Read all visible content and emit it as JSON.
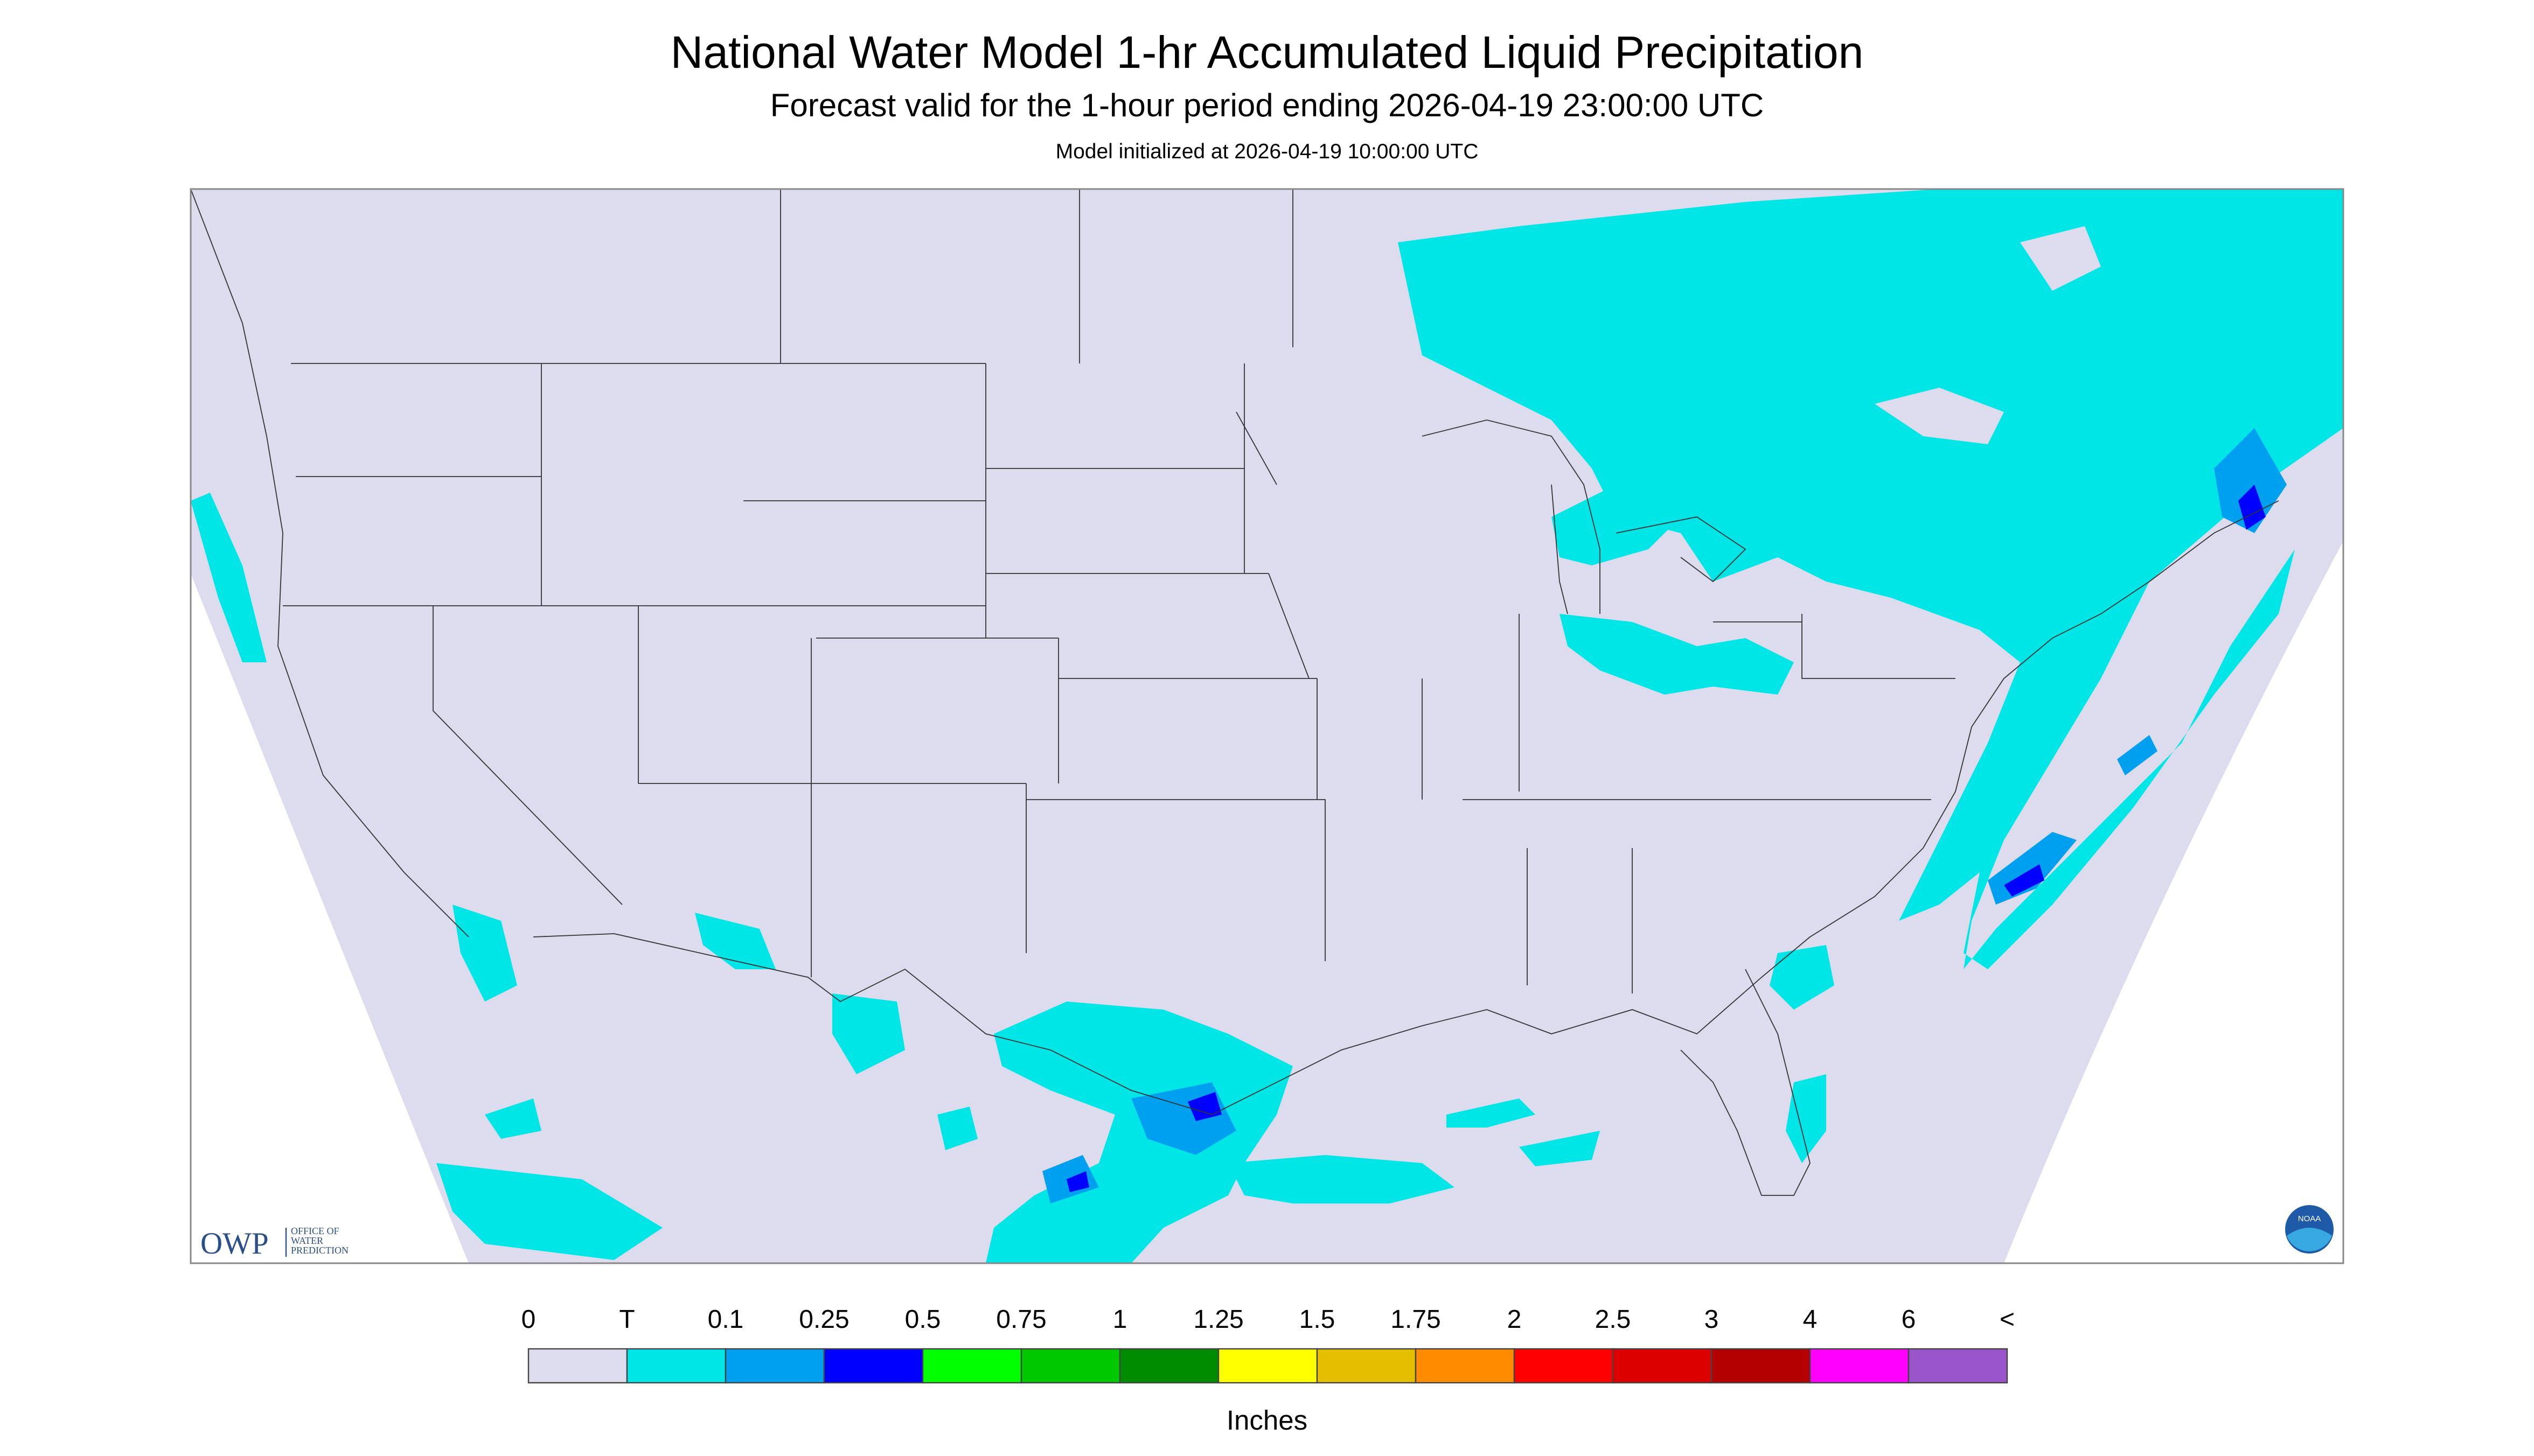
{
  "header": {
    "title": "National Water Model 1-hr Accumulated Liquid Precipitation",
    "subtitle": "Forecast valid for the 1-hour period ending 2026-04-19 23:00:00 UTC",
    "init": "Model initialized at 2026-04-19 10:00:00 UTC"
  },
  "logo": {
    "owp": "OWP",
    "line1": "OFFICE OF",
    "line2": "WATER",
    "line3": "PREDICTION",
    "noaa": "NOAA"
  },
  "legend": {
    "labels": [
      "0",
      "T",
      "0.1",
      "0.25",
      "0.5",
      "0.75",
      "1",
      "1.25",
      "1.5",
      "1.75",
      "2",
      "2.5",
      "3",
      "4",
      "6",
      "<"
    ],
    "colors": [
      "#dcdcee",
      "#00e6e6",
      "#00a0f0",
      "#0000ff",
      "#00ff00",
      "#00c800",
      "#008c00",
      "#ffff00",
      "#e6be00",
      "#ff8c00",
      "#ff0000",
      "#dc0000",
      "#b40000",
      "#ff00ff",
      "#9955c9"
    ],
    "units": "Inches"
  }
}
